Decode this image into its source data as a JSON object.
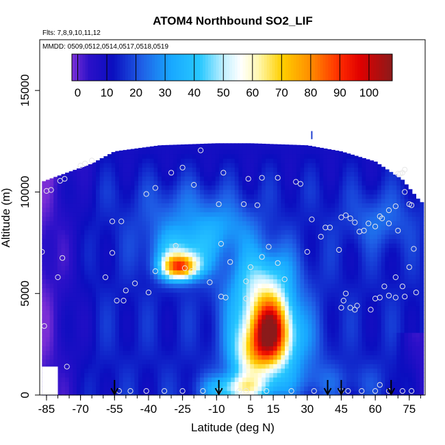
{
  "chart_data": {
    "type": "heatmap",
    "title": "ATOM4 Northbound SO2_LIF",
    "subtitle_flights": "Flts: 7,8,9,10,11,12",
    "subtitle_dates": "MMDD: 0509,0512,0514,0517,0518,0519",
    "xlabel": "Latitude (deg N)",
    "ylabel": "Altitude (m)",
    "xlim": [
      -88,
      82
    ],
    "ylim": [
      0,
      17500
    ],
    "x_ticks": [
      -85,
      -70,
      -55,
      -40,
      -25,
      -10,
      5,
      15,
      30,
      45,
      60,
      75
    ],
    "x_tick_labels": [
      "-85",
      "-70",
      "-55",
      "-40",
      "-25",
      "-10",
      "5",
      "15",
      "30",
      "45",
      "60",
      "75"
    ],
    "y_ticks": [
      0,
      5000,
      10000,
      15000
    ],
    "y_tick_labels": [
      "0",
      "5000",
      "10000",
      "15000"
    ],
    "colorbar": {
      "min": -2,
      "max": 108,
      "ticks": [
        0,
        10,
        20,
        30,
        40,
        50,
        60,
        70,
        80,
        90,
        100
      ],
      "tick_labels": [
        "0",
        "10",
        "20",
        "30",
        "40",
        "50",
        "60",
        "70",
        "80",
        "90",
        "100"
      ],
      "stops": [
        {
          "v": -2,
          "color": "#7b2fd6"
        },
        {
          "v": 4,
          "color": "#2a10c8"
        },
        {
          "v": 12,
          "color": "#0b0ebf"
        },
        {
          "v": 22,
          "color": "#1f5fe6"
        },
        {
          "v": 32,
          "color": "#18a8ff"
        },
        {
          "v": 42,
          "color": "#28c8ff"
        },
        {
          "v": 50,
          "color": "#c0f0ff"
        },
        {
          "v": 56,
          "color": "#ffffff"
        },
        {
          "v": 62,
          "color": "#fff8b0"
        },
        {
          "v": 70,
          "color": "#ffd000"
        },
        {
          "v": 80,
          "color": "#ff8c00"
        },
        {
          "v": 90,
          "color": "#ff2a00"
        },
        {
          "v": 97,
          "color": "#e00000"
        },
        {
          "v": 108,
          "color": "#8b1a1a"
        }
      ]
    },
    "field": {
      "lat_range": [
        -87,
        80
      ],
      "coverage": [
        {
          "lat": -87,
          "alt": 10500
        },
        {
          "lat": -65,
          "alt": 11400
        },
        {
          "lat": -55,
          "alt": 12000
        },
        {
          "lat": -35,
          "alt": 12300
        },
        {
          "lat": -10,
          "alt": 12400
        },
        {
          "lat": 5,
          "alt": 12400
        },
        {
          "lat": 30,
          "alt": 12300
        },
        {
          "lat": 45,
          "alt": 12000
        },
        {
          "lat": 60,
          "alt": 11500
        },
        {
          "lat": 72,
          "alt": 10600
        },
        {
          "lat": 80,
          "alt": 9500
        }
      ],
      "plumes": [
        {
          "lat": -26,
          "alt": 6300,
          "sx": 6,
          "sy": 450,
          "amp": 65
        },
        {
          "lat": -25,
          "alt": 7100,
          "sx": 9,
          "sy": 700,
          "amp": 22
        },
        {
          "lat": -24,
          "alt": 8600,
          "sx": 14,
          "sy": 1200,
          "amp": 12
        },
        {
          "lat": 14,
          "alt": 3100,
          "sx": 6,
          "sy": 1200,
          "amp": 72
        },
        {
          "lat": 5,
          "alt": 2000,
          "sx": 7,
          "sy": 1100,
          "amp": 38
        },
        {
          "lat": 8,
          "alt": 4600,
          "sx": 10,
          "sy": 1400,
          "amp": 28
        },
        {
          "lat": 0,
          "alt": 300,
          "sx": 10,
          "sy": 500,
          "amp": 35
        },
        {
          "lat": 12,
          "alt": 6200,
          "sx": 10,
          "sy": 1000,
          "amp": 14
        },
        {
          "lat": -5,
          "alt": 8200,
          "sx": 10,
          "sy": 900,
          "amp": 12
        },
        {
          "lat": 25,
          "alt": 2500,
          "sx": 8,
          "sy": 1500,
          "amp": 14
        },
        {
          "lat": 62,
          "alt": 8600,
          "sx": 10,
          "sy": 900,
          "amp": 10
        },
        {
          "lat": 40,
          "alt": 700,
          "sx": 18,
          "sy": 600,
          "amp": 6
        }
      ]
    },
    "sample_points": [
      {
        "lat": -85,
        "alt": 10050
      },
      {
        "lat": -83,
        "alt": 10100
      },
      {
        "lat": -79,
        "alt": 10550
      },
      {
        "lat": -77,
        "alt": 10650
      },
      {
        "lat": -70,
        "alt": 11300
      },
      {
        "lat": -68,
        "alt": 11400
      },
      {
        "lat": -65,
        "alt": 11550
      },
      {
        "lat": -87,
        "alt": 7050
      },
      {
        "lat": -78,
        "alt": 6750
      },
      {
        "lat": -80,
        "alt": 5800
      },
      {
        "lat": -86,
        "alt": 3400
      },
      {
        "lat": -76,
        "alt": 1400
      },
      {
        "lat": -56,
        "alt": 8550
      },
      {
        "lat": -52,
        "alt": 8550
      },
      {
        "lat": -56,
        "alt": 7000
      },
      {
        "lat": -59,
        "alt": 5800
      },
      {
        "lat": -50,
        "alt": 5150
      },
      {
        "lat": -54,
        "alt": 4650
      },
      {
        "lat": -51,
        "alt": 4650
      },
      {
        "lat": -46,
        "alt": 5500
      },
      {
        "lat": -40,
        "alt": 5050
      },
      {
        "lat": -37,
        "alt": 6100
      },
      {
        "lat": -41,
        "alt": 9900
      },
      {
        "lat": -37,
        "alt": 10200
      },
      {
        "lat": -30,
        "alt": 10950
      },
      {
        "lat": -25,
        "alt": 11200
      },
      {
        "lat": -17,
        "alt": 12050
      },
      {
        "lat": -20,
        "alt": 10350
      },
      {
        "lat": -7,
        "alt": 10950
      },
      {
        "lat": -9,
        "alt": 9400
      },
      {
        "lat": 2,
        "alt": 9400
      },
      {
        "lat": -28,
        "alt": 7350
      },
      {
        "lat": -24,
        "alt": 6250
      },
      {
        "lat": -21,
        "alt": 6100
      },
      {
        "lat": -13,
        "alt": 5550
      },
      {
        "lat": -8,
        "alt": 4850
      },
      {
        "lat": -6,
        "alt": 4800
      },
      {
        "lat": -8,
        "alt": 7450
      },
      {
        "lat": -4,
        "alt": 6550
      },
      {
        "lat": 3,
        "alt": 4750
      },
      {
        "lat": 3,
        "alt": 5600
      },
      {
        "lat": 4,
        "alt": 10650
      },
      {
        "lat": 10,
        "alt": 10700
      },
      {
        "lat": 17,
        "alt": 10700
      },
      {
        "lat": 25,
        "alt": 10500
      },
      {
        "lat": 27,
        "alt": 10400
      },
      {
        "lat": 8,
        "alt": 9350
      },
      {
        "lat": 5,
        "alt": 6300
      },
      {
        "lat": 10,
        "alt": 6800
      },
      {
        "lat": 17,
        "alt": 6500
      },
      {
        "lat": 20,
        "alt": 5700
      },
      {
        "lat": 13,
        "alt": 7300
      },
      {
        "lat": 30,
        "alt": 7050
      },
      {
        "lat": 32,
        "alt": 8650
      },
      {
        "lat": 36,
        "alt": 7800
      },
      {
        "lat": 38,
        "alt": 8250
      },
      {
        "lat": 40,
        "alt": 8250
      },
      {
        "lat": 44,
        "alt": 7150
      },
      {
        "lat": 45,
        "alt": 8750
      },
      {
        "lat": 47,
        "alt": 8850
      },
      {
        "lat": 49,
        "alt": 8700
      },
      {
        "lat": 51,
        "alt": 8500
      },
      {
        "lat": 53,
        "alt": 8050
      },
      {
        "lat": 55,
        "alt": 8100
      },
      {
        "lat": 57,
        "alt": 8450
      },
      {
        "lat": 60,
        "alt": 8300
      },
      {
        "lat": 62,
        "alt": 8800
      },
      {
        "lat": 63,
        "alt": 8700
      },
      {
        "lat": 66,
        "alt": 8450
      },
      {
        "lat": 70,
        "alt": 8100
      },
      {
        "lat": 66,
        "alt": 9100
      },
      {
        "lat": 69,
        "alt": 9300
      },
      {
        "lat": 75,
        "alt": 9400
      },
      {
        "lat": 76,
        "alt": 9350
      },
      {
        "lat": 73,
        "alt": 10000
      },
      {
        "lat": 71,
        "alt": 10900
      },
      {
        "lat": 73,
        "alt": 11100
      },
      {
        "lat": 70,
        "alt": 10900
      },
      {
        "lat": 72,
        "alt": 10950
      },
      {
        "lat": 77,
        "alt": 7200
      },
      {
        "lat": 75,
        "alt": 6300
      },
      {
        "lat": 69,
        "alt": 5800
      },
      {
        "lat": 72,
        "alt": 5350
      },
      {
        "lat": 78,
        "alt": 5050
      },
      {
        "lat": 73,
        "alt": 4850
      },
      {
        "lat": 69,
        "alt": 4800
      },
      {
        "lat": 66,
        "alt": 4900
      },
      {
        "lat": 62,
        "alt": 4800
      },
      {
        "lat": 60,
        "alt": 4750
      },
      {
        "lat": 58,
        "alt": 4200
      },
      {
        "lat": 52,
        "alt": 4400
      },
      {
        "lat": 51,
        "alt": 4200
      },
      {
        "lat": 49,
        "alt": 4300
      },
      {
        "lat": 46,
        "alt": 4650
      },
      {
        "lat": 45,
        "alt": 4300
      },
      {
        "lat": 47,
        "alt": 5000
      },
      {
        "lat": 64,
        "alt": 5350
      },
      {
        "lat": -53,
        "alt": 200
      },
      {
        "lat": -48,
        "alt": 200
      },
      {
        "lat": -41,
        "alt": 200
      },
      {
        "lat": -33,
        "alt": 200
      },
      {
        "lat": -25,
        "alt": 200
      },
      {
        "lat": -16,
        "alt": 200
      },
      {
        "lat": -9,
        "alt": 200
      },
      {
        "lat": 0,
        "alt": 200
      },
      {
        "lat": 3,
        "alt": 200
      },
      {
        "lat": 12,
        "alt": 200
      },
      {
        "lat": 23,
        "alt": 200
      },
      {
        "lat": 33,
        "alt": 200
      },
      {
        "lat": 45,
        "alt": 200
      },
      {
        "lat": 48,
        "alt": 200
      },
      {
        "lat": 54,
        "alt": 200
      },
      {
        "lat": 60,
        "alt": 200
      },
      {
        "lat": 62,
        "alt": 500
      },
      {
        "lat": 66,
        "alt": 200
      },
      {
        "lat": 72,
        "alt": 200
      },
      {
        "lat": 76,
        "alt": 200
      }
    ],
    "arrows": [
      -55,
      -9,
      39,
      45,
      67
    ],
    "tick_mark_top": {
      "lat": 32,
      "alt": 12700
    }
  }
}
